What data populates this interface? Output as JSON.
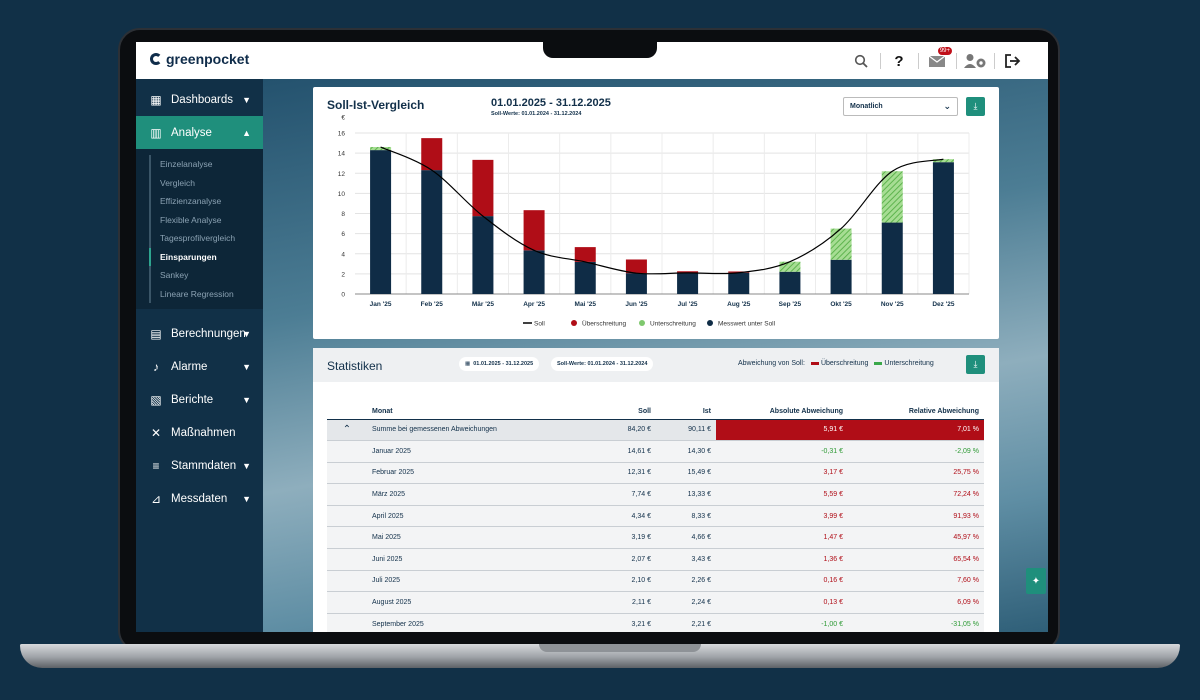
{
  "app": {
    "logo": "greenpocket",
    "notification_count": "99+"
  },
  "topbar_icons": [
    "search-icon",
    "help-icon",
    "mail-icon",
    "user-settings-icon",
    "logout-icon"
  ],
  "sidebar": {
    "items": [
      {
        "label": "Dashboards",
        "icon": "dashboard-icon"
      },
      {
        "label": "Analyse",
        "icon": "chart-icon",
        "active": true
      },
      {
        "label": "Berechnungen",
        "icon": "calculator-icon"
      },
      {
        "label": "Alarme",
        "icon": "bell-icon"
      },
      {
        "label": "Berichte",
        "icon": "report-icon"
      },
      {
        "label": "Maßnahmen",
        "icon": "tools-icon"
      },
      {
        "label": "Stammdaten",
        "icon": "master-data-icon"
      },
      {
        "label": "Messdaten",
        "icon": "measurement-icon"
      }
    ],
    "submenu": [
      "Einzelanalyse",
      "Vergleich",
      "Effizienzanalyse",
      "Flexible Analyse",
      "Tagesprofilvergleich",
      "Einsparungen",
      "Sankey",
      "Lineare Regression"
    ],
    "submenu_active": "Einsparungen"
  },
  "chart_card": {
    "title": "Soll-Ist-Vergleich",
    "date_range": "01.01.2025 - 31.12.2025",
    "soll_range": "Soll-Werte: 01.01.2024 - 31.12.2024",
    "interval": "Monatlich"
  },
  "chart_data": {
    "type": "bar",
    "y_unit": "€",
    "ylim": [
      0,
      16
    ],
    "yticks": [
      "0",
      "2",
      "4",
      "6",
      "8",
      "10",
      "12",
      "14",
      "16"
    ],
    "categories": [
      "Jan '25",
      "Feb '25",
      "Mär '25",
      "Apr '25",
      "Mai '25",
      "Jun '25",
      "Jul '25",
      "Aug '25",
      "Sep '25",
      "Okt '25",
      "Nov '25",
      "Dez '25"
    ],
    "series": [
      {
        "name": "Soll",
        "values": [
          14.61,
          12.31,
          7.74,
          4.34,
          3.19,
          2.07,
          2.1,
          2.11,
          3.21,
          6.5,
          12.2,
          13.4
        ]
      },
      {
        "name": "Überschreitung",
        "values": [
          0,
          3.18,
          5.59,
          3.99,
          1.47,
          1.36,
          0.16,
          0.13,
          0,
          0,
          0,
          0
        ]
      },
      {
        "name": "Unterschreitung",
        "values": [
          0.31,
          0,
          0,
          0,
          0,
          0,
          0,
          0,
          1.0,
          3.1,
          5.1,
          0.3
        ]
      },
      {
        "name": "Messwert unter Soll",
        "values": [
          14.3,
          12.31,
          7.74,
          4.34,
          3.19,
          2.07,
          2.1,
          2.11,
          2.21,
          3.4,
          7.1,
          13.1
        ]
      }
    ],
    "colors": {
      "soll": "#000000",
      "over": "#b00d17",
      "under": "#7fc86e",
      "base": "#0f2c46"
    }
  },
  "stats": {
    "title": "Statistiken",
    "date_range": "01.01.2025 - 31.12.2025",
    "soll_range": "Soll-Werte: 01.01.2024 - 31.12.2024",
    "deviation_label": "Abweichung von Soll:",
    "legend_over": "Überschreitung",
    "legend_under": "Unterschreitung",
    "columns": [
      "Monat",
      "Soll",
      "Ist",
      "Absolute Abweichung",
      "Relative Abweichung"
    ],
    "sum_row": {
      "label": "Summe bei gemessenen Abweichungen",
      "soll": "84,20 €",
      "ist": "90,11 €",
      "abs": "5,91 €",
      "rel": "7,01 %"
    },
    "rows": [
      {
        "month": "Januar 2025",
        "soll": "14,61 €",
        "ist": "14,30 €",
        "abs": "-0,31 €",
        "rel": "-2,09 %",
        "dir": "pos"
      },
      {
        "month": "Februar 2025",
        "soll": "12,31 €",
        "ist": "15,49 €",
        "abs": "3,17 €",
        "rel": "25,75 %",
        "dir": "neg"
      },
      {
        "month": "März 2025",
        "soll": "7,74 €",
        "ist": "13,33 €",
        "abs": "5,59 €",
        "rel": "72,24 %",
        "dir": "neg"
      },
      {
        "month": "April 2025",
        "soll": "4,34 €",
        "ist": "8,33 €",
        "abs": "3,99 €",
        "rel": "91,93 %",
        "dir": "neg"
      },
      {
        "month": "Mai 2025",
        "soll": "3,19 €",
        "ist": "4,66 €",
        "abs": "1,47 €",
        "rel": "45,97 %",
        "dir": "neg"
      },
      {
        "month": "Juni 2025",
        "soll": "2,07 €",
        "ist": "3,43 €",
        "abs": "1,36 €",
        "rel": "65,54 %",
        "dir": "neg"
      },
      {
        "month": "Juli 2025",
        "soll": "2,10 €",
        "ist": "2,26 €",
        "abs": "0,16 €",
        "rel": "7,60 %",
        "dir": "neg"
      },
      {
        "month": "August 2025",
        "soll": "2,11 €",
        "ist": "2,24 €",
        "abs": "0,13 €",
        "rel": "6,09 %",
        "dir": "neg"
      },
      {
        "month": "September 2025",
        "soll": "3,21 €",
        "ist": "2,21 €",
        "abs": "-1,00 €",
        "rel": "-31,05 %",
        "dir": "pos"
      }
    ]
  }
}
